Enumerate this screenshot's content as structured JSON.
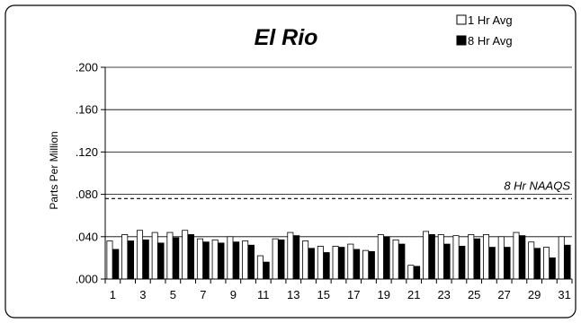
{
  "chart_data": {
    "type": "bar",
    "title": "El Rio",
    "xlabel": "",
    "ylabel": "Parts Per Million",
    "ylim": [
      0,
      0.2
    ],
    "yticks": [
      ".000",
      ".040",
      ".080",
      ".120",
      ".160",
      ".200"
    ],
    "ytick_values": [
      0,
      0.04,
      0.08,
      0.12,
      0.16,
      0.2
    ],
    "categories": [
      1,
      2,
      3,
      4,
      5,
      6,
      7,
      8,
      9,
      10,
      11,
      12,
      13,
      14,
      15,
      16,
      17,
      18,
      19,
      20,
      21,
      22,
      23,
      24,
      25,
      26,
      27,
      28,
      29,
      30,
      31
    ],
    "xtick_labels": [
      "1",
      "3",
      "5",
      "7",
      "9",
      "11",
      "13",
      "15",
      "17",
      "19",
      "21",
      "23",
      "25",
      "27",
      "29",
      "31"
    ],
    "xtick_days": [
      1,
      3,
      5,
      7,
      9,
      11,
      13,
      15,
      17,
      19,
      21,
      23,
      25,
      27,
      29,
      31
    ],
    "series": [
      {
        "name": "1 Hr Avg",
        "color": "#ffffff",
        "values": [
          0.036,
          0.042,
          0.046,
          0.044,
          0.044,
          0.046,
          0.038,
          0.037,
          0.04,
          0.036,
          0.022,
          0.038,
          0.044,
          0.036,
          0.031,
          0.031,
          0.033,
          0.027,
          0.042,
          0.037,
          0.013,
          0.045,
          0.042,
          0.041,
          0.042,
          0.042,
          0.04,
          0.044,
          0.035,
          0.03,
          0.04
        ]
      },
      {
        "name": "8 Hr Avg",
        "color": "#000000",
        "values": [
          0.028,
          0.036,
          0.037,
          0.034,
          0.039,
          0.042,
          0.035,
          0.034,
          0.035,
          0.032,
          0.016,
          0.037,
          0.041,
          0.029,
          0.025,
          0.03,
          0.028,
          0.026,
          0.04,
          0.033,
          0.012,
          0.042,
          0.033,
          0.031,
          0.038,
          0.03,
          0.03,
          0.041,
          0.029,
          0.02,
          0.032
        ]
      }
    ],
    "legend_position": "top-right",
    "grid": true,
    "reference_line": {
      "label": "8 Hr NAAQS",
      "value": 0.076,
      "style": "dashed"
    }
  }
}
